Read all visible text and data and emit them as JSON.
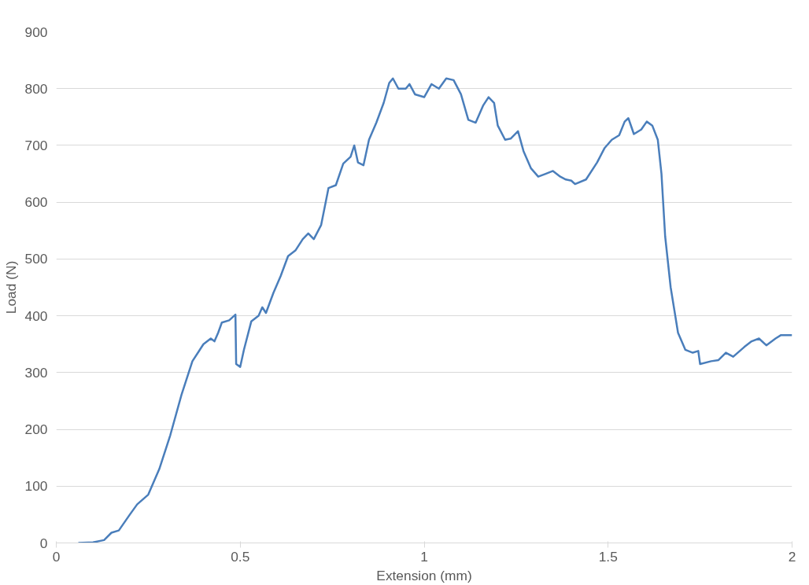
{
  "chart_data": {
    "type": "line",
    "xlabel": "Extension (mm)",
    "ylabel": "Load (N)",
    "xlim": [
      0,
      2
    ],
    "xticks": [
      0,
      0.5,
      1,
      1.5,
      2
    ],
    "ylim": [
      0,
      900
    ],
    "yticks": [
      0,
      100,
      200,
      300,
      400,
      500,
      600,
      700,
      800,
      900
    ],
    "grid": "y",
    "line_style": "solid",
    "series": [
      {
        "color": "#4a7ebb",
        "x": [
          0.06,
          0.1,
          0.13,
          0.15,
          0.17,
          0.2,
          0.22,
          0.25,
          0.28,
          0.31,
          0.34,
          0.37,
          0.4,
          0.42,
          0.43,
          0.44,
          0.45,
          0.47,
          0.487,
          0.489,
          0.5,
          0.51,
          0.53,
          0.55,
          0.56,
          0.57,
          0.59,
          0.61,
          0.63,
          0.65,
          0.67,
          0.685,
          0.7,
          0.72,
          0.74,
          0.76,
          0.78,
          0.8,
          0.81,
          0.82,
          0.835,
          0.85,
          0.87,
          0.89,
          0.905,
          0.915,
          0.93,
          0.95,
          0.96,
          0.975,
          1.0,
          1.02,
          1.04,
          1.06,
          1.08,
          1.1,
          1.12,
          1.14,
          1.16,
          1.175,
          1.19,
          1.2,
          1.22,
          1.235,
          1.255,
          1.27,
          1.29,
          1.31,
          1.33,
          1.35,
          1.37,
          1.385,
          1.4,
          1.41,
          1.44,
          1.47,
          1.49,
          1.51,
          1.53,
          1.545,
          1.555,
          1.57,
          1.59,
          1.605,
          1.62,
          1.635,
          1.645,
          1.655,
          1.67,
          1.69,
          1.71,
          1.73,
          1.745,
          1.75,
          1.78,
          1.8,
          1.82,
          1.84,
          1.87,
          1.89,
          1.91,
          1.93,
          1.955,
          1.97,
          2.0
        ],
        "values": [
          0,
          1,
          5,
          18,
          22,
          50,
          68,
          85,
          130,
          190,
          260,
          320,
          350,
          360,
          355,
          370,
          388,
          392,
          402,
          315,
          310,
          340,
          390,
          400,
          415,
          405,
          440,
          470,
          505,
          515,
          535,
          545,
          535,
          560,
          625,
          630,
          668,
          680,
          700,
          670,
          665,
          710,
          740,
          775,
          810,
          818,
          800,
          800,
          808,
          790,
          785,
          808,
          800,
          818,
          815,
          790,
          745,
          740,
          770,
          785,
          775,
          735,
          710,
          712,
          725,
          690,
          660,
          645,
          650,
          655,
          645,
          640,
          638,
          632,
          640,
          670,
          695,
          710,
          718,
          742,
          748,
          720,
          728,
          742,
          735,
          710,
          650,
          540,
          450,
          370,
          340,
          335,
          338,
          315,
          320,
          322,
          335,
          328,
          345,
          355,
          360,
          348,
          360,
          366,
          366
        ]
      }
    ]
  }
}
